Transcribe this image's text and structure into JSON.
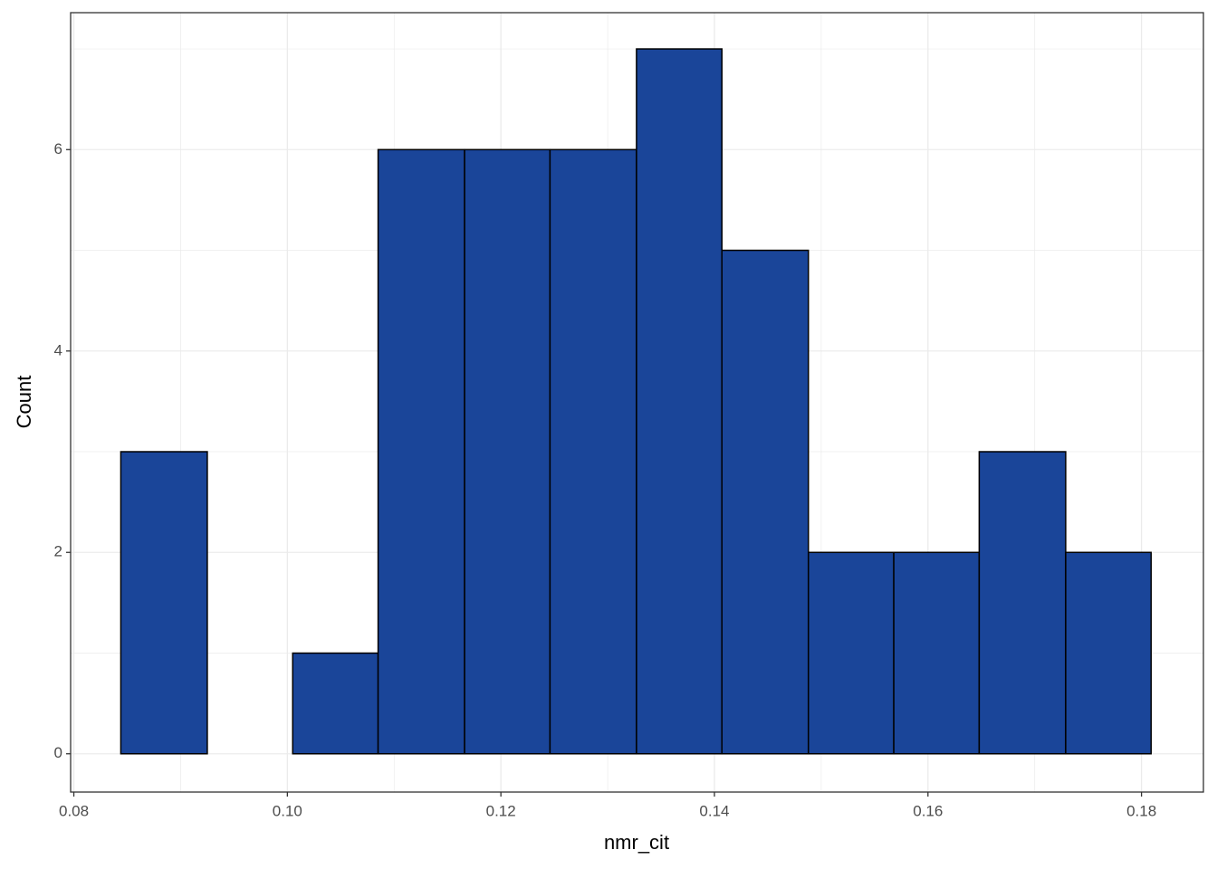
{
  "chart_data": {
    "type": "histogram",
    "x_label": "nmr_cit",
    "y_label": "Count",
    "bins": [
      0.0844,
      0.0925,
      0.1005,
      0.1085,
      0.1166,
      0.1246,
      0.1327,
      0.1407,
      0.1488,
      0.1568,
      0.1648,
      0.1729,
      0.1809
    ],
    "values": [
      3,
      0,
      1,
      6,
      6,
      6,
      7,
      5,
      2,
      2,
      3,
      2
    ],
    "color": "#1a4599",
    "edge_color": "#000000",
    "xlim": [
      0.0797,
      0.1858
    ],
    "ylim": [
      -0.38,
      7.36
    ],
    "xticks": [
      0.08,
      {
        "value": 0.1,
        "label": "0.10"
      },
      0.12,
      0.14,
      0.16,
      0.18
    ],
    "yticks": [
      0,
      2,
      4,
      6
    ],
    "grid": true
  }
}
